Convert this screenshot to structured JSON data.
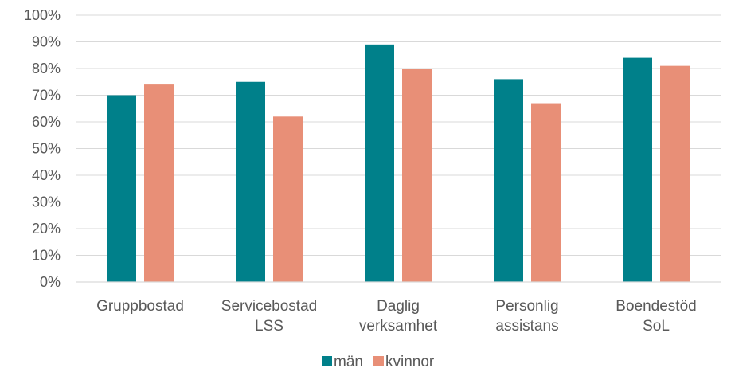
{
  "chart_data": {
    "type": "bar",
    "categories": [
      [
        "Gruppbostad"
      ],
      [
        "Servicebostad",
        "LSS"
      ],
      [
        "Daglig",
        "verksamhet"
      ],
      [
        "Personlig",
        "assistans"
      ],
      [
        "Boendestöd",
        "SoL"
      ]
    ],
    "series": [
      {
        "name": "män",
        "color": "#00808a",
        "values": [
          70,
          75,
          89,
          76,
          84
        ]
      },
      {
        "name": "kvinnor",
        "color": "#e88f77",
        "values": [
          74,
          62,
          80,
          67,
          81
        ]
      }
    ],
    "y_ticks": [
      "0%",
      "10%",
      "20%",
      "30%",
      "40%",
      "50%",
      "60%",
      "70%",
      "80%",
      "90%",
      "100%"
    ],
    "ylim": [
      0,
      100
    ],
    "grid": true,
    "legend_position": "bottom"
  }
}
